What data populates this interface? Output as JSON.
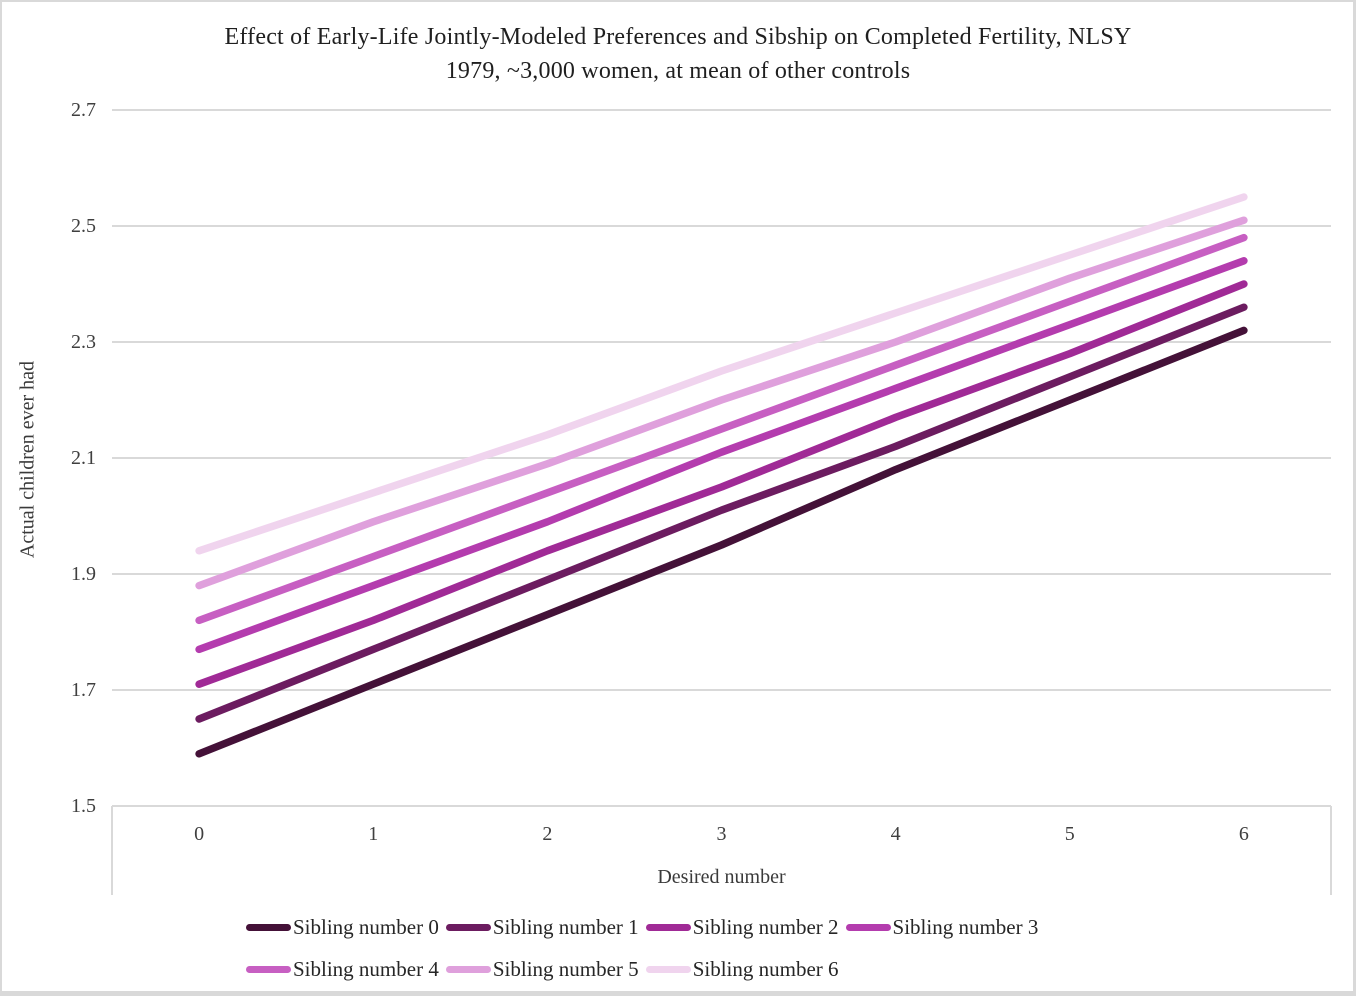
{
  "chart_data": {
    "type": "line",
    "title": "Effect of Early-Life Jointly-Modeled Preferences and Sibship on Completed Fertility, NLSY 1979, ~3,000 women, at mean of other controls",
    "title_line1": "Effect of Early-Life Jointly-Modeled Preferences and Sibship on Completed Fertility, NLSY",
    "title_line2": "1979, ~3,000 women, at mean of other controls",
    "xlabel": "Desired number",
    "ylabel": "Actual children ever had",
    "x": [
      0,
      1,
      2,
      3,
      4,
      5,
      6
    ],
    "xticklabels": [
      "0",
      "1",
      "2",
      "3",
      "4",
      "5",
      "6"
    ],
    "yticks": [
      1.5,
      1.7,
      1.9,
      2.1,
      2.3,
      2.5,
      2.7
    ],
    "yticklabels": [
      "1.5",
      "1.7",
      "1.9",
      "2.1",
      "2.3",
      "2.5",
      "2.7"
    ],
    "ylim": [
      1.5,
      2.7
    ],
    "grid": "horizontal",
    "legend_position": "bottom",
    "series": [
      {
        "name": "Sibling number 0",
        "color": "#441138",
        "values": [
          1.59,
          1.71,
          1.83,
          1.95,
          2.08,
          2.2,
          2.32
        ]
      },
      {
        "name": "Sibling number 1",
        "color": "#6c1c60",
        "values": [
          1.65,
          1.77,
          1.89,
          2.01,
          2.12,
          2.24,
          2.36
        ]
      },
      {
        "name": "Sibling number 2",
        "color": "#a02a96",
        "values": [
          1.71,
          1.82,
          1.94,
          2.05,
          2.17,
          2.28,
          2.4
        ]
      },
      {
        "name": "Sibling number 3",
        "color": "#b43cae",
        "values": [
          1.77,
          1.88,
          1.99,
          2.11,
          2.22,
          2.33,
          2.44
        ]
      },
      {
        "name": "Sibling number 4",
        "color": "#c75fc2",
        "values": [
          1.82,
          1.93,
          2.04,
          2.15,
          2.26,
          2.37,
          2.48
        ]
      },
      {
        "name": "Sibling number 5",
        "color": "#dfa0dc",
        "values": [
          1.88,
          1.99,
          2.09,
          2.2,
          2.3,
          2.41,
          2.51
        ]
      },
      {
        "name": "Sibling number 6",
        "color": "#f0d4ee",
        "values": [
          1.94,
          2.04,
          2.14,
          2.25,
          2.35,
          2.45,
          2.55
        ]
      }
    ],
    "legend_rows": [
      [
        0,
        1,
        2,
        3
      ],
      [
        4,
        5,
        6
      ]
    ],
    "colors": {
      "gridline": "#d9d9d9",
      "axis_line": "#d9d9d9",
      "title_text": "#1f1f1f",
      "tick_text": "#3f3f3f",
      "frame_border": "#d9d9d9",
      "background": "#ffffff"
    }
  }
}
